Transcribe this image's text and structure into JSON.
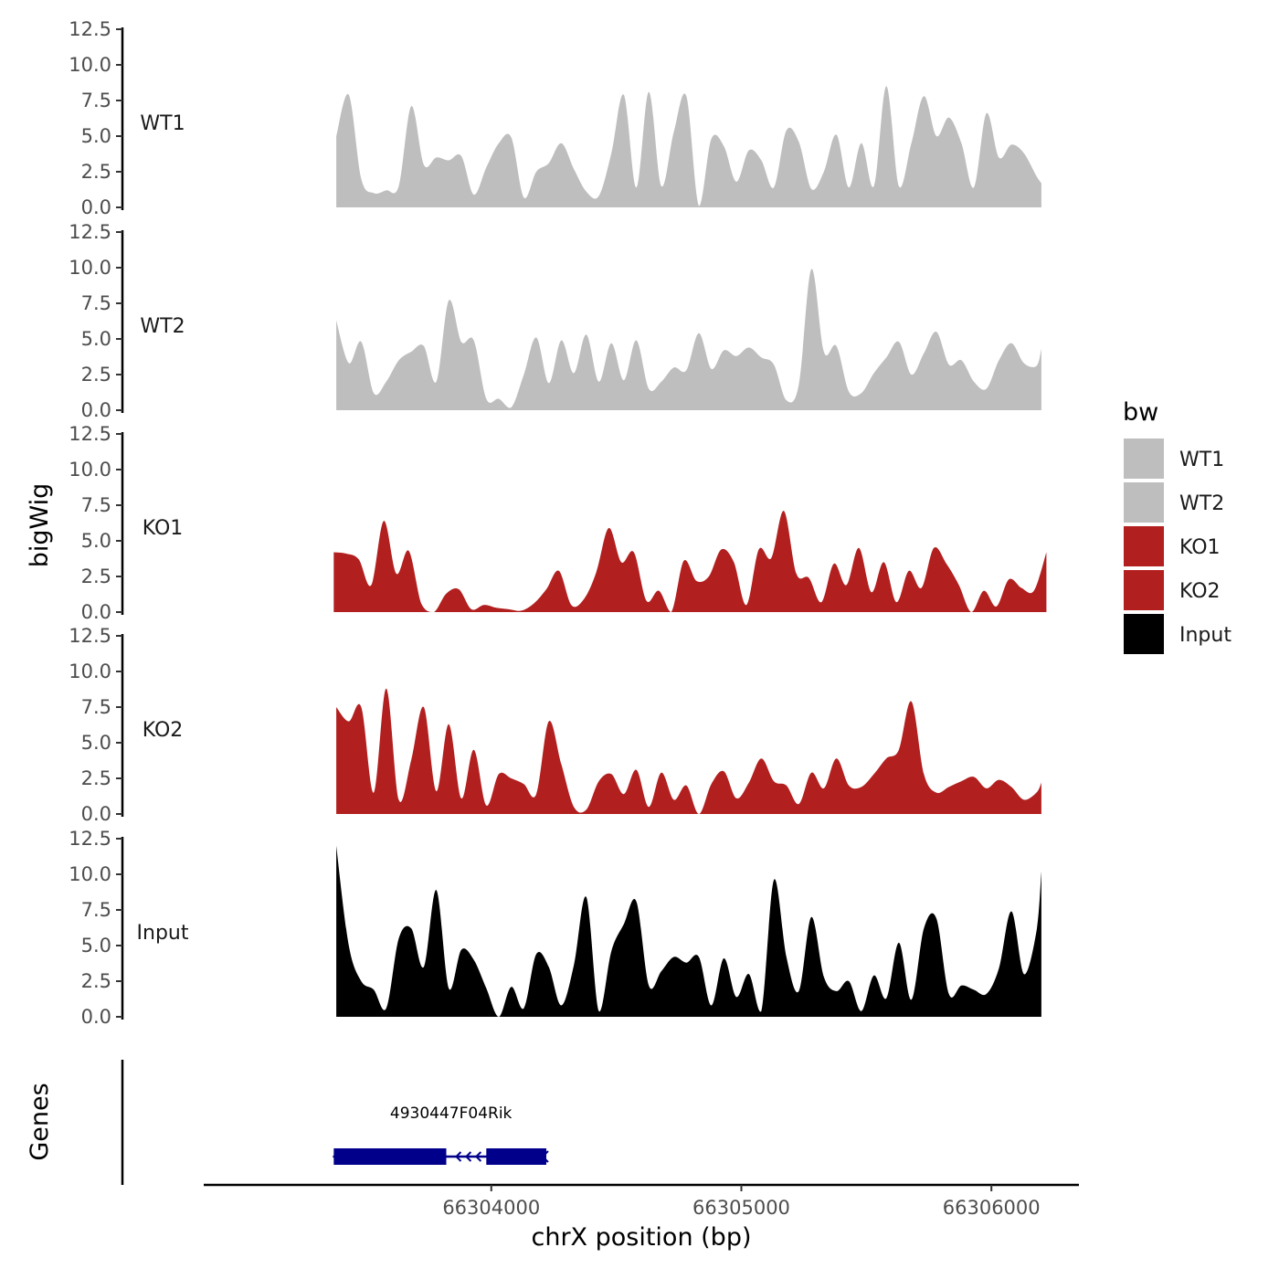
{
  "chart_data": {
    "type": "area",
    "ylabel": "bigWig",
    "xlabel": "chrX position (bp)",
    "genes_label": "Genes",
    "xlim": [
      66302850,
      66306350
    ],
    "x_ticks": [
      66304000,
      66305000,
      66306000
    ],
    "x_tick_labels": [
      "66304000",
      "66305000",
      "66306000"
    ],
    "ylim": [
      0,
      12.5
    ],
    "y_ticks": [
      0,
      2.5,
      5,
      7.5,
      10,
      12.5
    ],
    "y_tick_labels": [
      "0.0",
      "2.5",
      "5.0",
      "7.5",
      "10.0",
      "12.5"
    ],
    "grid": false,
    "legend": {
      "title": "bw",
      "position": "right",
      "entries": [
        {
          "label": "WT1",
          "color": "#bebebe"
        },
        {
          "label": "WT2",
          "color": "#bebebe"
        },
        {
          "label": "KO1",
          "color": "#b21f1f"
        },
        {
          "label": "KO2",
          "color": "#b21f1f"
        },
        {
          "label": "Input",
          "color": "#000000"
        }
      ]
    },
    "tracks": [
      {
        "name": "WT1",
        "color": "#bebebe",
        "x": [
          66303380,
          66303430,
          66303480,
          66303530,
          66303580,
          66303630,
          66303680,
          66303730,
          66303780,
          66303830,
          66303880,
          66303930,
          66303980,
          66304030,
          66304080,
          66304130,
          66304180,
          66304230,
          66304280,
          66304330,
          66304380,
          66304430,
          66304480,
          66304530,
          66304580,
          66304630,
          66304680,
          66304730,
          66304780,
          66304830,
          66304880,
          66304930,
          66304980,
          66305030,
          66305080,
          66305130,
          66305180,
          66305230,
          66305280,
          66305330,
          66305380,
          66305430,
          66305480,
          66305530,
          66305580,
          66305630,
          66305680,
          66305730,
          66305780,
          66305830,
          66305880,
          66305930,
          66305980,
          66306030,
          66306080,
          66306130,
          66306180,
          66306200
        ],
        "y": [
          5.0,
          7.9,
          2.0,
          1.0,
          1.2,
          1.5,
          7.1,
          3.0,
          3.5,
          3.3,
          3.6,
          0.9,
          2.8,
          4.5,
          4.9,
          0.7,
          2.5,
          3.1,
          4.5,
          2.7,
          1.1,
          0.8,
          3.8,
          7.9,
          1.4,
          8.1,
          1.5,
          5.3,
          7.8,
          0.1,
          4.8,
          4.3,
          1.8,
          4.0,
          3.3,
          1.4,
          5.4,
          4.6,
          1.3,
          2.5,
          5.1,
          1.4,
          4.5,
          1.5,
          8.5,
          1.5,
          4.5,
          7.8,
          5.0,
          6.3,
          4.5,
          1.4,
          6.6,
          3.5,
          4.4,
          3.8,
          2.2,
          1.7
        ]
      },
      {
        "name": "WT2",
        "color": "#bebebe",
        "x": [
          66303380,
          66303430,
          66303480,
          66303530,
          66303580,
          66303630,
          66303680,
          66303730,
          66303780,
          66303830,
          66303880,
          66303930,
          66303980,
          66304030,
          66304080,
          66304130,
          66304180,
          66304230,
          66304280,
          66304330,
          66304380,
          66304430,
          66304480,
          66304530,
          66304580,
          66304630,
          66304680,
          66304730,
          66304780,
          66304830,
          66304880,
          66304930,
          66304980,
          66305030,
          66305080,
          66305130,
          66305180,
          66305230,
          66305280,
          66305330,
          66305380,
          66305430,
          66305480,
          66305530,
          66305580,
          66305630,
          66305680,
          66305730,
          66305780,
          66305830,
          66305880,
          66305930,
          66305980,
          66306030,
          66306080,
          66306130,
          66306180,
          66306200
        ],
        "y": [
          6.3,
          3.3,
          4.8,
          1.2,
          2.0,
          3.5,
          4.1,
          4.5,
          2.0,
          7.7,
          4.8,
          4.9,
          0.8,
          0.8,
          0.2,
          2.5,
          5.1,
          1.9,
          4.9,
          2.6,
          5.3,
          2.0,
          4.7,
          2.1,
          4.9,
          1.5,
          2.0,
          3.0,
          2.8,
          5.4,
          2.9,
          4.2,
          3.8,
          4.4,
          3.7,
          3.2,
          0.7,
          1.8,
          9.9,
          4.1,
          4.5,
          1.3,
          1.2,
          2.6,
          3.7,
          4.8,
          2.5,
          4.0,
          5.5,
          3.2,
          3.5,
          2.0,
          1.5,
          3.5,
          4.7,
          3.3,
          3.1,
          4.3
        ]
      },
      {
        "name": "KO1",
        "color": "#b21f1f",
        "x": [
          66303370,
          66303420,
          66303470,
          66303520,
          66303570,
          66303620,
          66303670,
          66303720,
          66303770,
          66303820,
          66303870,
          66303920,
          66303970,
          66304020,
          66304070,
          66304120,
          66304170,
          66304220,
          66304270,
          66304320,
          66304370,
          66304420,
          66304470,
          66304520,
          66304570,
          66304620,
          66304670,
          66304720,
          66304770,
          66304820,
          66304870,
          66304920,
          66304970,
          66305020,
          66305070,
          66305120,
          66305170,
          66305220,
          66305270,
          66305320,
          66305370,
          66305420,
          66305470,
          66305520,
          66305570,
          66305620,
          66305670,
          66305720,
          66305770,
          66305820,
          66305870,
          66305920,
          66305970,
          66306020,
          66306070,
          66306120,
          66306170,
          66306220
        ],
        "y": [
          4.2,
          4.1,
          3.7,
          1.9,
          6.4,
          2.7,
          4.3,
          0.6,
          0.0,
          1.3,
          1.6,
          0.2,
          0.5,
          0.3,
          0.2,
          0.1,
          0.6,
          1.6,
          2.9,
          0.5,
          0.9,
          2.8,
          5.9,
          3.5,
          4.2,
          0.8,
          1.5,
          0.0,
          3.6,
          2.2,
          2.5,
          4.4,
          3.5,
          0.5,
          4.4,
          3.8,
          7.1,
          2.7,
          2.4,
          0.7,
          3.4,
          1.9,
          4.5,
          1.4,
          3.5,
          0.7,
          2.9,
          1.7,
          4.5,
          3.4,
          1.9,
          0.0,
          1.5,
          0.4,
          2.3,
          1.7,
          1.5,
          4.2
        ]
      },
      {
        "name": "KO2",
        "color": "#b21f1f",
        "x": [
          66303380,
          66303430,
          66303480,
          66303530,
          66303580,
          66303630,
          66303680,
          66303730,
          66303780,
          66303830,
          66303880,
          66303930,
          66303980,
          66304030,
          66304080,
          66304130,
          66304180,
          66304230,
          66304280,
          66304330,
          66304380,
          66304430,
          66304480,
          66304530,
          66304580,
          66304630,
          66304680,
          66304730,
          66304780,
          66304830,
          66304880,
          66304930,
          66304980,
          66305030,
          66305080,
          66305130,
          66305180,
          66305230,
          66305280,
          66305330,
          66305380,
          66305430,
          66305480,
          66305530,
          66305580,
          66305630,
          66305680,
          66305730,
          66305780,
          66305830,
          66305880,
          66305930,
          66305980,
          66306030,
          66306080,
          66306130,
          66306180,
          66306200
        ],
        "y": [
          7.5,
          6.5,
          7.5,
          1.5,
          8.8,
          1.0,
          3.8,
          7.5,
          1.6,
          6.3,
          1.1,
          4.5,
          0.6,
          2.8,
          2.5,
          2.1,
          1.4,
          6.5,
          3.5,
          0.5,
          0.3,
          2.3,
          2.8,
          1.4,
          3.1,
          0.5,
          2.9,
          1.0,
          2.0,
          0.0,
          2.1,
          3.0,
          1.1,
          2.2,
          3.9,
          2.3,
          2.0,
          0.7,
          2.9,
          1.8,
          3.9,
          2.0,
          1.9,
          2.8,
          3.9,
          4.5,
          7.9,
          2.8,
          1.5,
          1.9,
          2.3,
          2.6,
          1.8,
          2.4,
          1.9,
          1.0,
          1.5,
          2.2
        ]
      },
      {
        "name": "Input",
        "color": "#000000",
        "x": [
          66303380,
          66303430,
          66303480,
          66303530,
          66303580,
          66303630,
          66303680,
          66303730,
          66303780,
          66303830,
          66303880,
          66303930,
          66303980,
          66304030,
          66304080,
          66304130,
          66304180,
          66304230,
          66304280,
          66304330,
          66304380,
          66304430,
          66304480,
          66304530,
          66304580,
          66304630,
          66304680,
          66304730,
          66304780,
          66304830,
          66304880,
          66304930,
          66304980,
          66305030,
          66305080,
          66305130,
          66305180,
          66305230,
          66305280,
          66305330,
          66305380,
          66305430,
          66305480,
          66305530,
          66305580,
          66305630,
          66305680,
          66305730,
          66305780,
          66305830,
          66305880,
          66305930,
          66305980,
          66306030,
          66306080,
          66306130,
          66306180,
          66306200
        ],
        "y": [
          12.0,
          5.0,
          2.5,
          1.9,
          0.6,
          5.5,
          6.2,
          3.5,
          8.9,
          2.0,
          4.7,
          4.0,
          2.0,
          0.0,
          2.1,
          0.6,
          4.4,
          3.5,
          0.8,
          3.6,
          8.4,
          0.4,
          4.6,
          6.5,
          8.1,
          2.2,
          3.2,
          4.2,
          3.8,
          4.2,
          0.8,
          4.1,
          1.4,
          3.0,
          0.4,
          9.6,
          4.2,
          1.8,
          7.0,
          2.8,
          1.8,
          2.5,
          0.4,
          2.9,
          1.3,
          5.2,
          1.2,
          6.2,
          6.9,
          1.6,
          2.2,
          1.9,
          1.6,
          3.4,
          7.4,
          3.0,
          6.0,
          10.2
        ]
      }
    ],
    "genes": [
      {
        "name": "4930447F04Rik",
        "strand": "-",
        "start": 66303370,
        "end": 66304220,
        "exons": [
          [
            66303370,
            66303820
          ],
          [
            66303980,
            66304220
          ]
        ]
      }
    ]
  }
}
